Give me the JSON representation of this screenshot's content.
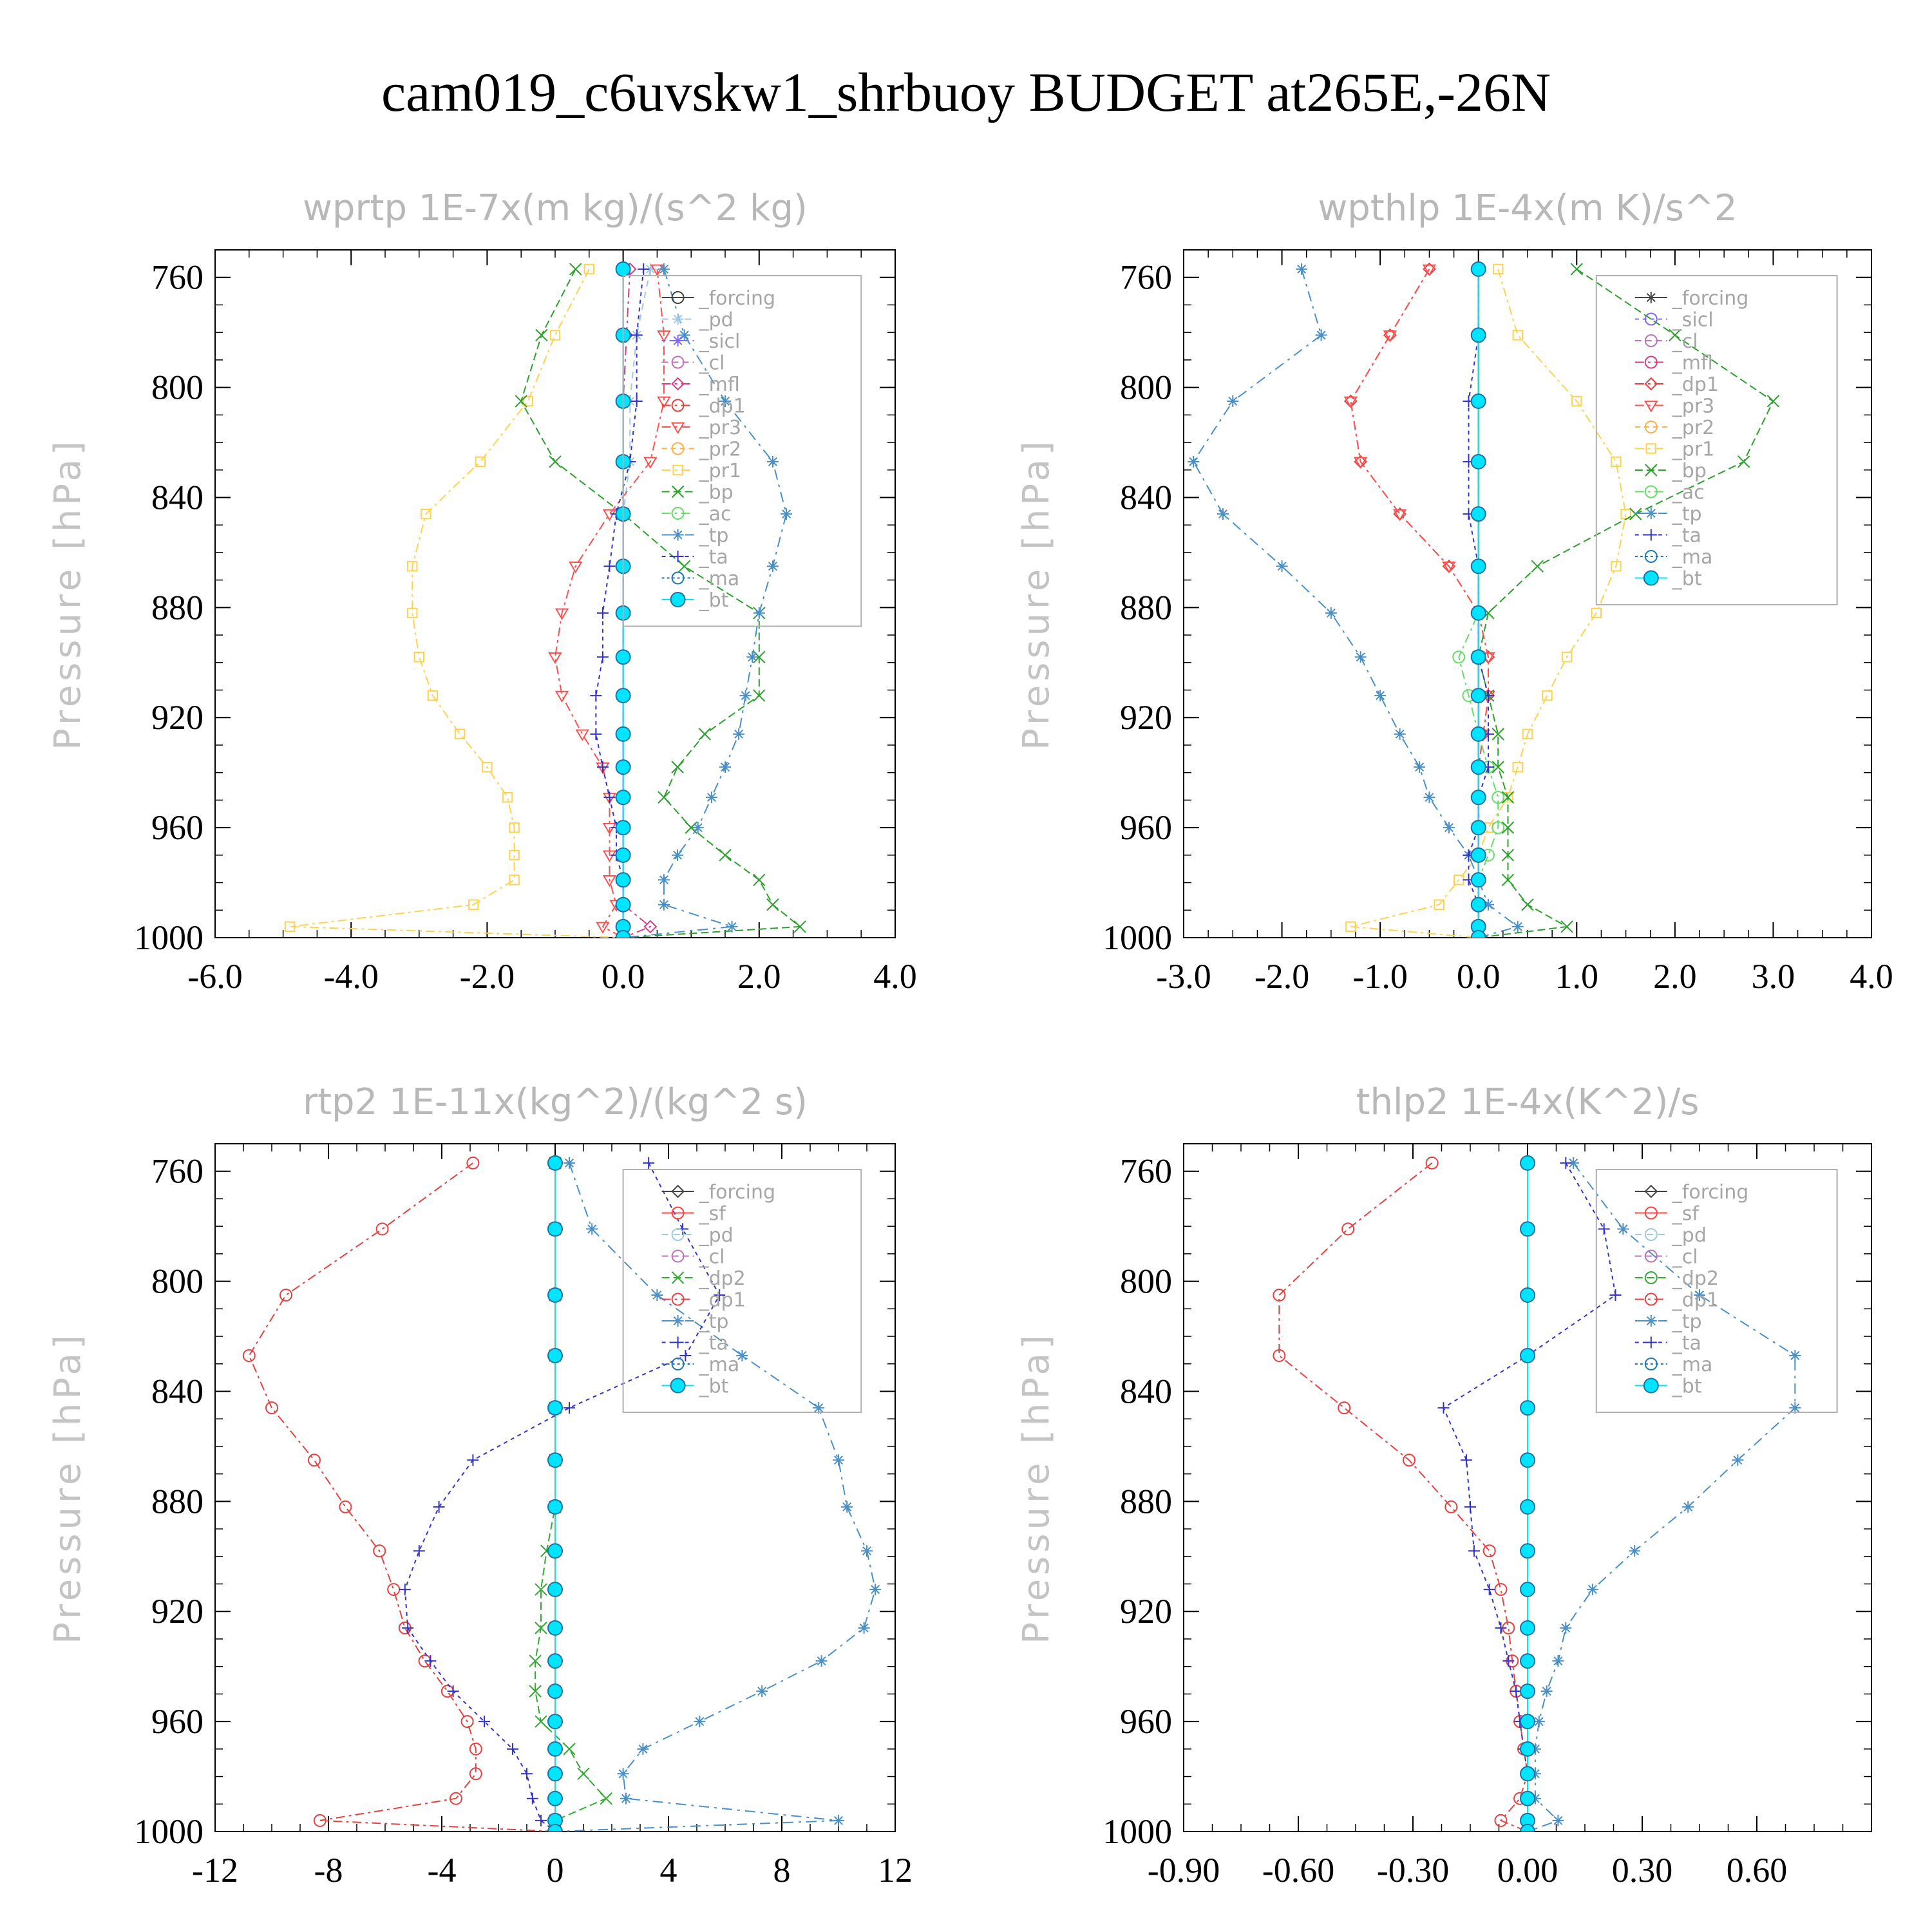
{
  "title": "cam019_c6uvskw1_shrbuoy  BUDGET at265E,-26N",
  "colors": {
    "forcing": "#444444",
    "pd": "#9ecae1",
    "sicl": "#7b68ee",
    "cl": "#c071c0",
    "mfl": "#d63c8a",
    "dp1": "#e84040",
    "pr3": "#ff5050",
    "pr2": "#ffb347",
    "pr1": "#ffd24d",
    "bp": "#2ca02c",
    "ac": "#66dd66",
    "tp": "#4a90c8",
    "ta": "#3333cc",
    "ma": "#1f77b4",
    "bt": "#00e5ff",
    "sf": "#ff4040",
    "dp2": "#33aa33",
    "frame": "#000000"
  },
  "chart_data": [
    {
      "type": "line",
      "title": "wprtp   1E-7x(m kg)/(s^2 kg)",
      "ylabel": "Pressure [hPa]",
      "xlim": [
        -6,
        4
      ],
      "ylim": [
        1000,
        750
      ],
      "inverted_y": true,
      "xticks": [
        "-6.0",
        "-4.0",
        "-2.0",
        "0.0",
        "2.0",
        "4.0"
      ],
      "yticks": [
        "760",
        "800",
        "840",
        "880",
        "920",
        "960",
        "1000"
      ],
      "legend": {
        "position": "top-right",
        "entries": [
          "_forcing",
          "_pd",
          "_sicl",
          "_cl",
          "_mfl",
          "_dp1",
          "_pr3",
          "_pr2",
          "_pr1",
          "_bp",
          "_ac",
          "_tp",
          "_ta",
          "_ma",
          "_bt"
        ]
      },
      "levels": [
        757,
        781,
        805,
        827,
        846,
        865,
        882,
        898,
        912,
        926,
        938,
        949,
        960,
        970,
        979,
        988,
        996,
        1000
      ],
      "series": [
        {
          "key": "forcing",
          "marker": "circle",
          "values": [
            0,
            0,
            0,
            0,
            0,
            0,
            0,
            0,
            0,
            0,
            0,
            0,
            0,
            0,
            0,
            0,
            0,
            0
          ]
        },
        {
          "key": "pd",
          "marker": "star",
          "values": [
            0.4,
            0.2,
            0.1,
            0.1,
            0,
            0,
            0,
            0,
            0,
            0,
            0,
            0,
            0,
            0,
            0,
            0,
            0,
            0
          ]
        },
        {
          "key": "sicl",
          "marker": "star",
          "values": [
            0,
            0,
            0,
            0,
            0,
            0,
            0,
            0,
            0,
            0,
            0,
            0,
            0,
            0,
            0,
            0,
            0,
            0
          ]
        },
        {
          "key": "mfl",
          "marker": "diamond",
          "values": [
            0.1,
            0.05,
            0,
            0,
            0,
            0,
            0,
            0,
            0,
            0,
            0,
            0,
            0,
            0,
            0,
            0,
            0.4,
            0
          ]
        },
        {
          "key": "pr3",
          "marker": "triangle-down",
          "values": [
            0.5,
            0.6,
            0.6,
            0.4,
            -0.2,
            -0.7,
            -0.9,
            -1.0,
            -0.9,
            -0.6,
            -0.3,
            -0.2,
            -0.2,
            -0.2,
            -0.2,
            -0.1,
            -0.3,
            0
          ]
        },
        {
          "key": "pr1",
          "marker": "square",
          "values": [
            -0.5,
            -1.0,
            -1.4,
            -2.1,
            -2.9,
            -3.1,
            -3.1,
            -3.0,
            -2.8,
            -2.4,
            -2.0,
            -1.7,
            -1.6,
            -1.6,
            -1.6,
            -2.2,
            -4.9,
            0
          ]
        },
        {
          "key": "bp",
          "marker": "x",
          "values": [
            -0.7,
            -1.2,
            -1.5,
            -1.0,
            0,
            0.9,
            2.0,
            2.0,
            2.0,
            1.2,
            0.8,
            0.6,
            1.0,
            1.5,
            2.0,
            2.2,
            2.6,
            0
          ]
        },
        {
          "key": "tp",
          "marker": "star",
          "values": [
            0.6,
            0.9,
            1.5,
            2.2,
            2.4,
            2.2,
            2.0,
            1.9,
            1.8,
            1.7,
            1.5,
            1.3,
            1.1,
            0.8,
            0.6,
            0.6,
            1.6,
            0
          ]
        },
        {
          "key": "ta",
          "marker": "plus",
          "values": [
            0.3,
            0.2,
            0.2,
            0.1,
            -0.1,
            -0.2,
            -0.3,
            -0.3,
            -0.4,
            -0.4,
            -0.3,
            -0.2,
            -0.1,
            -0.1,
            0,
            0,
            0,
            0
          ]
        },
        {
          "key": "bt",
          "marker": "filled-circle",
          "values": [
            0,
            0,
            0,
            0,
            0,
            0,
            0,
            0,
            0,
            0,
            0,
            0,
            0,
            0,
            0,
            0,
            0,
            0
          ]
        }
      ]
    },
    {
      "type": "line",
      "title": "wpthlp   1E-4x(m K)/s^2",
      "ylabel": "Pressure [hPa]",
      "xlim": [
        -3,
        4
      ],
      "ylim": [
        1000,
        750
      ],
      "inverted_y": true,
      "xticks": [
        "-3.0",
        "-2.0",
        "-1.0",
        "0.0",
        "1.0",
        "2.0",
        "3.0",
        "4.0"
      ],
      "yticks": [
        "760",
        "800",
        "840",
        "880",
        "920",
        "960",
        "1000"
      ],
      "legend": {
        "position": "top-right",
        "entries": [
          "_forcing",
          "_sicl",
          "_cl",
          "_mfl",
          "_dp1",
          "_pr3",
          "_pr2",
          "_pr1",
          "_bp",
          "_ac",
          "_tp",
          "_ta",
          "_ma",
          "_bt"
        ]
      },
      "levels": [
        757,
        781,
        805,
        827,
        846,
        865,
        882,
        898,
        912,
        926,
        938,
        949,
        960,
        970,
        979,
        988,
        996,
        1000
      ],
      "series": [
        {
          "key": "forcing",
          "marker": "star",
          "values": [
            0,
            0,
            0,
            0,
            0,
            0,
            0,
            0,
            0,
            0,
            0,
            0,
            0,
            0,
            0,
            0,
            0,
            0
          ]
        },
        {
          "key": "dp1",
          "marker": "diamond",
          "values": [
            -0.5,
            -0.9,
            -1.3,
            -1.2,
            -0.8,
            -0.3,
            0,
            0.1,
            0.1,
            0.05,
            0,
            0,
            0,
            0,
            0,
            0,
            0,
            0
          ]
        },
        {
          "key": "pr3",
          "marker": "triangle-down",
          "values": [
            -0.5,
            -0.9,
            -1.3,
            -1.2,
            -0.8,
            -0.3,
            0,
            0.1,
            0.1,
            0.05,
            0,
            0,
            0,
            0,
            0,
            0,
            0,
            0
          ]
        },
        {
          "key": "pr1",
          "marker": "square",
          "values": [
            0.2,
            0.4,
            1.0,
            1.4,
            1.5,
            1.4,
            1.2,
            0.9,
            0.7,
            0.5,
            0.4,
            0.3,
            0.1,
            0,
            -0.2,
            -0.4,
            -1.3,
            0
          ]
        },
        {
          "key": "bp",
          "marker": "x",
          "values": [
            1.0,
            2.0,
            3.0,
            2.7,
            1.6,
            0.6,
            0.1,
            0,
            0.1,
            0.2,
            0.2,
            0.3,
            0.3,
            0.3,
            0.3,
            0.5,
            0.9,
            0
          ]
        },
        {
          "key": "ac",
          "marker": "circle",
          "values": [
            0,
            0,
            0,
            0,
            0,
            0,
            0,
            -0.2,
            -0.1,
            0,
            0.1,
            0.2,
            0.2,
            0.1,
            0,
            0,
            0,
            0
          ]
        },
        {
          "key": "tp",
          "marker": "star",
          "values": [
            -1.8,
            -1.6,
            -2.5,
            -2.9,
            -2.6,
            -2.0,
            -1.5,
            -1.2,
            -1.0,
            -0.8,
            -0.6,
            -0.5,
            -0.3,
            -0.1,
            0,
            0.1,
            0.4,
            0
          ]
        },
        {
          "key": "ta",
          "marker": "plus",
          "values": [
            0,
            0,
            -0.1,
            -0.1,
            -0.1,
            0,
            0,
            0,
            0.1,
            0.1,
            0.1,
            0,
            0,
            -0.1,
            -0.1,
            0,
            0,
            0
          ]
        },
        {
          "key": "bt",
          "marker": "filled-circle",
          "values": [
            0,
            0,
            0,
            0,
            0,
            0,
            0,
            0,
            0,
            0,
            0,
            0,
            0,
            0,
            0,
            0,
            0,
            0
          ]
        }
      ]
    },
    {
      "type": "line",
      "title": "rtp2   1E-11x(kg^2)/(kg^2 s)",
      "ylabel": "Pressure [hPa]",
      "xlim": [
        -12,
        12
      ],
      "ylim": [
        1000,
        750
      ],
      "inverted_y": true,
      "xticks": [
        "-12",
        "-8",
        "-4",
        "0",
        "4",
        "8",
        "12"
      ],
      "yticks": [
        "760",
        "800",
        "840",
        "880",
        "920",
        "960",
        "1000"
      ],
      "legend": {
        "position": "top-right",
        "entries": [
          "_forcing",
          "_sf",
          "_pd",
          "_cl",
          "_dp2",
          "_dp1",
          "_tp",
          "_ta",
          "_ma",
          "_bt"
        ]
      },
      "levels": [
        757,
        781,
        805,
        827,
        846,
        865,
        882,
        898,
        912,
        926,
        938,
        949,
        960,
        970,
        979,
        988,
        996,
        1000
      ],
      "series": [
        {
          "key": "forcing",
          "marker": "diamond",
          "values": [
            0,
            0,
            0,
            0,
            0,
            0,
            0,
            0,
            0,
            0,
            0,
            0,
            0,
            0,
            0,
            0,
            0,
            0
          ]
        },
        {
          "key": "dp2",
          "marker": "x",
          "values": [
            0,
            0,
            0,
            0,
            0,
            0,
            0,
            -0.3,
            -0.5,
            -0.5,
            -0.7,
            -0.7,
            -0.5,
            0.5,
            1.0,
            1.8,
            0,
            0
          ]
        },
        {
          "key": "dp1",
          "marker": "circle",
          "values": [
            -2.9,
            -6.1,
            -9.5,
            -10.8,
            -10.0,
            -8.5,
            -7.4,
            -6.2,
            -5.7,
            -5.3,
            -4.6,
            -3.8,
            -3.1,
            -2.8,
            -2.8,
            -3.5,
            -8.3,
            0
          ]
        },
        {
          "key": "tp",
          "marker": "star",
          "values": [
            0.5,
            1.3,
            3.6,
            6.6,
            9.3,
            10.0,
            10.3,
            11.0,
            11.3,
            10.9,
            9.4,
            7.3,
            5.1,
            3.1,
            2.4,
            2.5,
            10.0,
            0
          ]
        },
        {
          "key": "ta",
          "marker": "plus",
          "values": [
            3.3,
            4.5,
            5.8,
            4.6,
            0.5,
            -2.9,
            -4.1,
            -4.8,
            -5.3,
            -5.2,
            -4.4,
            -3.6,
            -2.5,
            -1.5,
            -1.0,
            -0.8,
            -0.5,
            0
          ]
        },
        {
          "key": "bt",
          "marker": "filled-circle",
          "values": [
            0,
            0,
            0,
            0,
            0,
            0,
            0,
            0,
            0,
            0,
            0,
            0,
            0,
            0,
            0,
            0,
            0,
            0
          ]
        }
      ]
    },
    {
      "type": "line",
      "title": "thlp2   1E-4x(K^2)/s",
      "ylabel": "Pressure [hPa]",
      "xlim": [
        -0.9,
        0.9
      ],
      "ylim": [
        1000,
        750
      ],
      "inverted_y": true,
      "xticks": [
        "-0.90",
        "-0.60",
        "-0.30",
        "0.00",
        "0.30",
        "0.60"
      ],
      "yticks": [
        "760",
        "800",
        "840",
        "880",
        "920",
        "960",
        "1000"
      ],
      "legend": {
        "position": "top-right",
        "entries": [
          "_forcing",
          "_sf",
          "_pd",
          "_cl",
          "_dp2",
          "_dp1",
          "_tp",
          "_ta",
          "_ma",
          "_bt"
        ]
      },
      "levels": [
        757,
        781,
        805,
        827,
        846,
        865,
        882,
        898,
        912,
        926,
        938,
        949,
        960,
        970,
        979,
        988,
        996,
        1000
      ],
      "series": [
        {
          "key": "forcing",
          "marker": "diamond",
          "values": [
            0,
            0,
            0,
            0,
            0,
            0,
            0,
            0,
            0,
            0,
            0,
            0,
            0,
            0,
            0,
            0,
            0,
            0
          ]
        },
        {
          "key": "dp1",
          "marker": "circle",
          "values": [
            -0.25,
            -0.47,
            -0.65,
            -0.65,
            -0.48,
            -0.31,
            -0.2,
            -0.1,
            -0.07,
            -0.05,
            -0.04,
            -0.03,
            -0.02,
            -0.01,
            0,
            -0.02,
            -0.07,
            0
          ]
        },
        {
          "key": "tp",
          "marker": "star",
          "values": [
            0.12,
            0.25,
            0.45,
            0.7,
            0.7,
            0.55,
            0.42,
            0.28,
            0.17,
            0.1,
            0.08,
            0.05,
            0.03,
            0.02,
            0.02,
            0.02,
            0.08,
            0
          ]
        },
        {
          "key": "ta",
          "marker": "plus",
          "values": [
            0.1,
            0.2,
            0.23,
            0,
            -0.22,
            -0.16,
            -0.15,
            -0.14,
            -0.1,
            -0.07,
            -0.05,
            -0.03,
            -0.02,
            -0.01,
            0,
            0,
            0,
            0
          ]
        },
        {
          "key": "bt",
          "marker": "filled-circle",
          "values": [
            0,
            0,
            0,
            0,
            0,
            0,
            0,
            0,
            0,
            0,
            0,
            0,
            0,
            0,
            0,
            0,
            0,
            0
          ]
        }
      ]
    }
  ]
}
